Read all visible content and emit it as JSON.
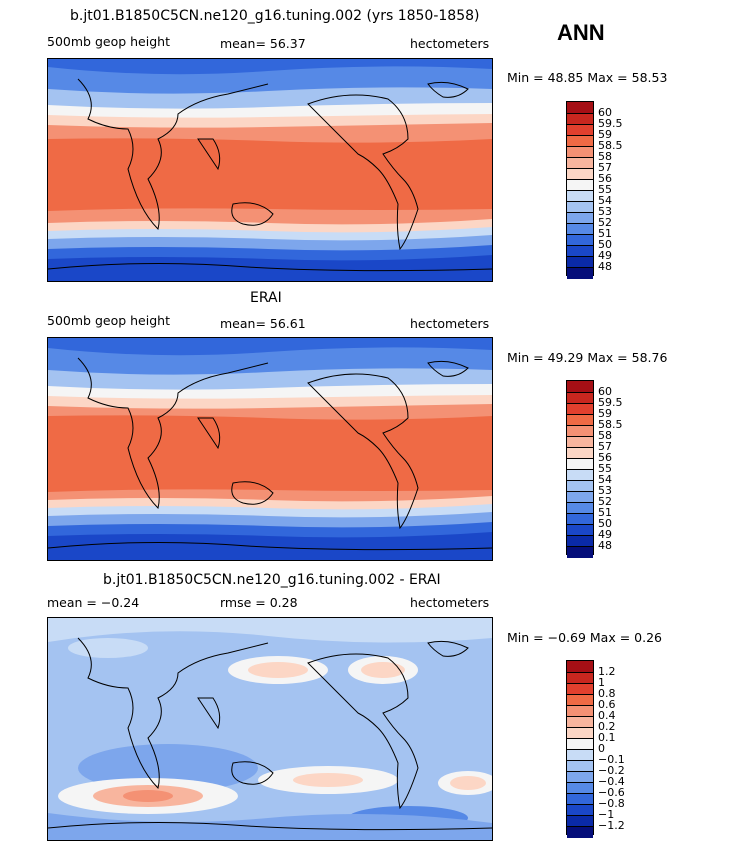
{
  "season": "ANN",
  "panels": [
    {
      "title": "b.jt01.B1850C5CN.ne120_g16.tuning.002 (yrs 1850-1858)",
      "left_label": "500mb geop height",
      "stat_label": "mean=  56.37",
      "units": "hectometers",
      "minmax": "Min =   48.85  Max =   58.53",
      "levels": [
        "60",
        "59.5",
        "59",
        "58.5",
        "58",
        "57",
        "56",
        "55",
        "54",
        "53",
        "52",
        "51",
        "50",
        "49",
        "48"
      ],
      "colors": [
        "#a50f15",
        "#c8271f",
        "#e1402e",
        "#ef6a45",
        "#f49174",
        "#f8b59e",
        "#fcd6c5",
        "#f5f5f5",
        "#c8dcf6",
        "#a4c3f1",
        "#7da6ec",
        "#5689e6",
        "#3267db",
        "#1a47c8",
        "#0a2aa8",
        "#050e7a"
      ]
    },
    {
      "title": "ERAI",
      "left_label": "500mb geop height",
      "stat_label": "mean=  56.61",
      "units": "hectometers",
      "minmax": "Min =   49.29  Max =   58.76",
      "levels": [
        "60",
        "59.5",
        "59",
        "58.5",
        "58",
        "57",
        "56",
        "55",
        "54",
        "53",
        "52",
        "51",
        "50",
        "49",
        "48"
      ],
      "colors": [
        "#a50f15",
        "#c8271f",
        "#e1402e",
        "#ef6a45",
        "#f49174",
        "#f8b59e",
        "#fcd6c5",
        "#f5f5f5",
        "#c8dcf6",
        "#a4c3f1",
        "#7da6ec",
        "#5689e6",
        "#3267db",
        "#1a47c8",
        "#0a2aa8",
        "#050e7a"
      ]
    },
    {
      "title": "b.jt01.B1850C5CN.ne120_g16.tuning.002 - ERAI",
      "left_label": "mean =   −0.24",
      "stat_label": "rmse =    0.28",
      "units": "hectometers",
      "minmax": "Min =   −0.69  Max =    0.26",
      "levels": [
        "1.2",
        "1",
        "0.8",
        "0.6",
        "0.4",
        "0.2",
        "0.1",
        "0",
        "−0.1",
        "−0.2",
        "−0.4",
        "−0.6",
        "−0.8",
        "−1",
        "−1.2"
      ],
      "colors": [
        "#a50f15",
        "#c8271f",
        "#e1402e",
        "#ef6a45",
        "#f49174",
        "#f8b59e",
        "#fcd6c5",
        "#f5f5f5",
        "#c8dcf6",
        "#a4c3f1",
        "#7da6ec",
        "#5689e6",
        "#3267db",
        "#1a47c8",
        "#0a2aa8",
        "#050e7a"
      ]
    }
  ]
}
